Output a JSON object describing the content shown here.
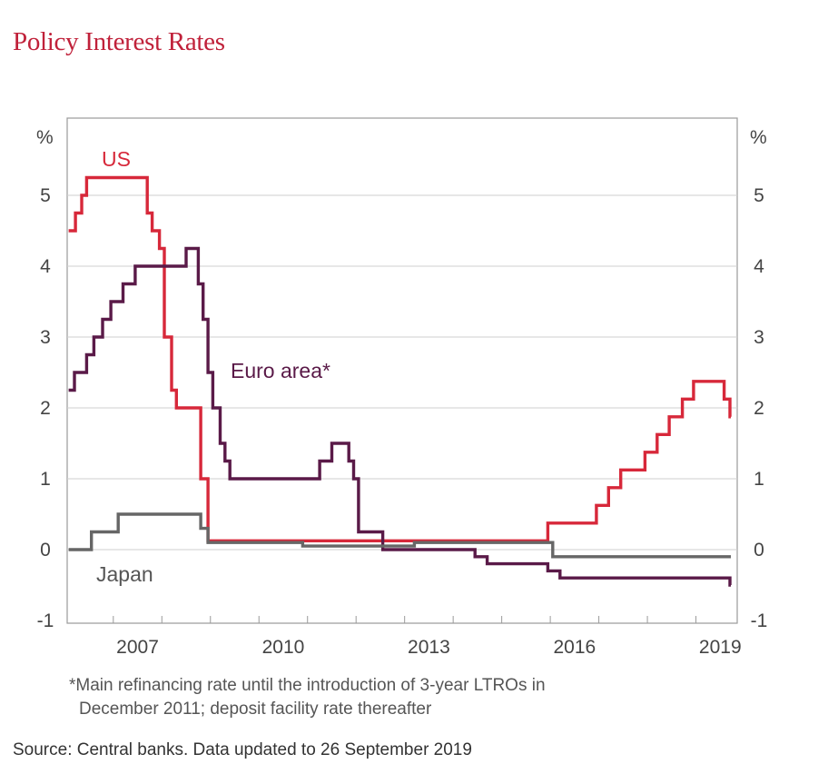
{
  "chart_data": {
    "type": "line",
    "title": "Policy Interest Rates",
    "ylabel_left": "%",
    "ylabel_right": "%",
    "ylim": [
      -1,
      5.8
    ],
    "xlim": [
      2006.05,
      2019.85
    ],
    "yticks": [
      -1,
      0,
      1,
      2,
      3,
      4,
      5
    ],
    "xticks": [
      {
        "value": 2007.5,
        "label": "2007"
      },
      {
        "value": 2010.5,
        "label": "2010"
      },
      {
        "value": 2013.5,
        "label": "2013"
      },
      {
        "value": 2016.5,
        "label": "2016"
      },
      {
        "value": 2019.5,
        "label": "2019"
      }
    ],
    "grid": true,
    "series": [
      {
        "name": "US",
        "color": "#d7283a",
        "step": true,
        "points": [
          [
            2006.08,
            4.5
          ],
          [
            2006.22,
            4.75
          ],
          [
            2006.35,
            5.0
          ],
          [
            2006.45,
            5.25
          ],
          [
            2007.7,
            4.75
          ],
          [
            2007.8,
            4.5
          ],
          [
            2007.95,
            4.25
          ],
          [
            2008.05,
            3.0
          ],
          [
            2008.2,
            2.25
          ],
          [
            2008.3,
            2.0
          ],
          [
            2008.8,
            1.0
          ],
          [
            2008.95,
            0.125
          ],
          [
            2015.95,
            0.375
          ],
          [
            2016.95,
            0.625
          ],
          [
            2017.2,
            0.875
          ],
          [
            2017.45,
            1.125
          ],
          [
            2017.95,
            1.375
          ],
          [
            2018.2,
            1.625
          ],
          [
            2018.45,
            1.875
          ],
          [
            2018.72,
            2.125
          ],
          [
            2018.95,
            2.375
          ],
          [
            2019.58,
            2.125
          ],
          [
            2019.7,
            1.875
          ],
          [
            2019.72,
            1.875
          ]
        ]
      },
      {
        "name": "Euro area*",
        "color": "#5a1a48",
        "step": true,
        "points": [
          [
            2006.08,
            2.25
          ],
          [
            2006.2,
            2.5
          ],
          [
            2006.45,
            2.75
          ],
          [
            2006.6,
            3.0
          ],
          [
            2006.78,
            3.25
          ],
          [
            2006.95,
            3.5
          ],
          [
            2007.2,
            3.75
          ],
          [
            2007.45,
            4.0
          ],
          [
            2008.5,
            4.25
          ],
          [
            2008.75,
            3.75
          ],
          [
            2008.85,
            3.25
          ],
          [
            2008.95,
            2.5
          ],
          [
            2009.05,
            2.0
          ],
          [
            2009.2,
            1.5
          ],
          [
            2009.3,
            1.25
          ],
          [
            2009.4,
            1.0
          ],
          [
            2011.25,
            1.25
          ],
          [
            2011.5,
            1.5
          ],
          [
            2011.85,
            1.25
          ],
          [
            2011.95,
            1.0
          ],
          [
            2012.05,
            0.25
          ],
          [
            2012.55,
            0.0
          ],
          [
            2014.45,
            -0.1
          ],
          [
            2014.7,
            -0.2
          ],
          [
            2015.95,
            -0.3
          ],
          [
            2016.2,
            -0.4
          ],
          [
            2019.7,
            -0.5
          ],
          [
            2019.72,
            -0.5
          ]
        ]
      },
      {
        "name": "Japan",
        "color": "#666666",
        "step": true,
        "points": [
          [
            2006.08,
            0.0
          ],
          [
            2006.55,
            0.25
          ],
          [
            2007.1,
            0.5
          ],
          [
            2008.8,
            0.3
          ],
          [
            2008.95,
            0.1
          ],
          [
            2010.9,
            0.05
          ],
          [
            2013.2,
            0.1
          ],
          [
            2016.05,
            -0.1
          ],
          [
            2019.72,
            -0.1
          ]
        ]
      }
    ]
  },
  "labels": {
    "us": "US",
    "euro": "Euro area*",
    "japan": "Japan"
  },
  "footnote_line1": "*Main refinancing rate until the introduction of 3-year LTROs in",
  "footnote_line2": "December 2011; deposit facility rate thereafter",
  "source": "Source:  Central banks. Data updated to 26 September 2019"
}
